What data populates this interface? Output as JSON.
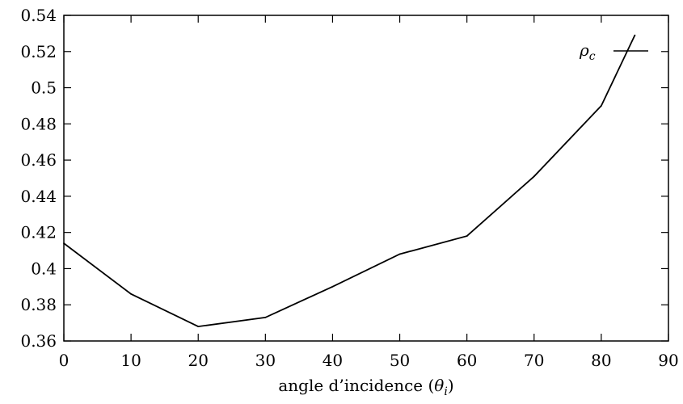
{
  "chart_data": {
    "type": "line",
    "title": "",
    "xlabel": "angle d’incidence (θ_i)",
    "xlabel_parts": {
      "main": "angle d’incidence (",
      "symbol": "θ",
      "sub": "i",
      "close": ")"
    },
    "ylabel": "",
    "xlim": [
      0,
      90
    ],
    "ylim": [
      0.36,
      0.54
    ],
    "xticks": [
      "0",
      "10",
      "20",
      "30",
      "40",
      "50",
      "60",
      "70",
      "80",
      "90"
    ],
    "yticks": [
      "0.36",
      "0.38",
      "0.4",
      "0.42",
      "0.44",
      "0.46",
      "0.48",
      "0.5",
      "0.52",
      "0.54"
    ],
    "grid": false,
    "legend_position": "top-right",
    "series": [
      {
        "name": "ρc",
        "name_parts": {
          "symbol": "ρ",
          "sub": "c"
        },
        "color": "#000000",
        "x": [
          0,
          10,
          20,
          30,
          40,
          50,
          60,
          70,
          80,
          85
        ],
        "y": [
          0.414,
          0.386,
          0.368,
          0.373,
          0.39,
          0.408,
          0.418,
          0.451,
          0.49,
          0.529
        ]
      }
    ]
  }
}
